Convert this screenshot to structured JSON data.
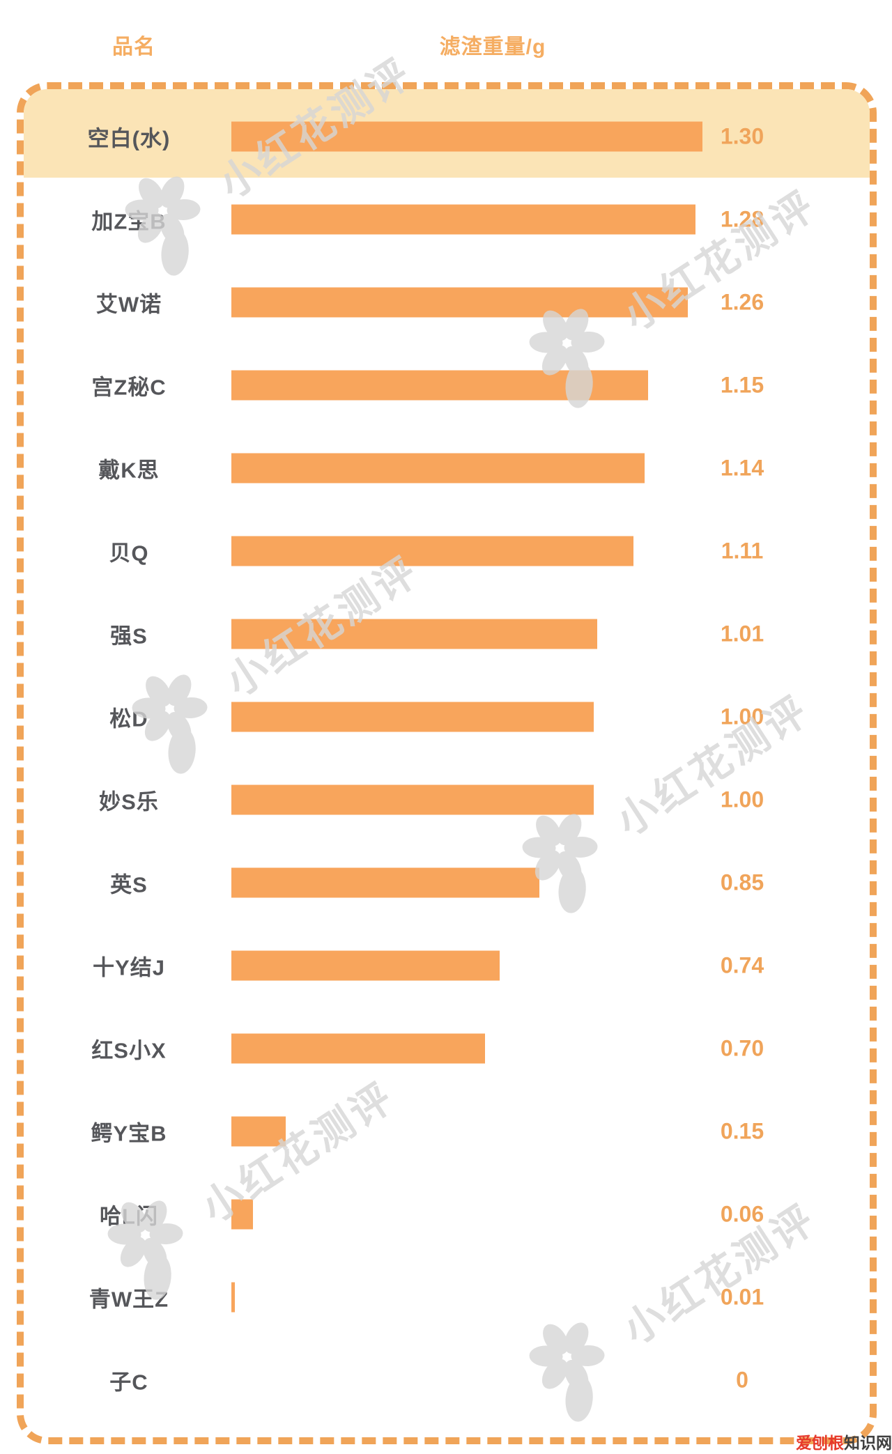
{
  "header": {
    "col_product": "品名",
    "col_weight": "滤渣重量/g"
  },
  "chart_data": {
    "type": "bar",
    "orientation": "horizontal",
    "title": "",
    "xlabel": "滤渣重量/g",
    "ylabel": "品名",
    "unit": "g",
    "xlim": [
      0,
      1.3
    ],
    "max_value": 1.3,
    "grid": false,
    "legend_position": "none",
    "highlighted_category": "空白(水)",
    "categories": [
      "空白(水)",
      "加Z宝B",
      "艾W诺",
      "宫Z秘C",
      "戴K思",
      "贝Q",
      "强S",
      "松D",
      "妙S乐",
      "英S",
      "十Y结J",
      "红S小X",
      "鳄Y宝B",
      "哈L闪",
      "青W王Z",
      "子C"
    ],
    "values": [
      1.3,
      1.28,
      1.26,
      1.15,
      1.14,
      1.11,
      1.01,
      1.0,
      1.0,
      0.85,
      0.74,
      0.7,
      0.15,
      0.06,
      0.01,
      0
    ],
    "value_labels": [
      "1.30",
      "1.28",
      "1.26",
      "1.15",
      "1.14",
      "1.11",
      "1.01",
      "1.00",
      "1.00",
      "0.85",
      "0.74",
      "0.70",
      "0.15",
      "0.06",
      "0.01",
      "0"
    ],
    "bar_color": "#F8A55C",
    "highlight_band_color": "#FBE4B6",
    "value_text_color": "#F0A45A",
    "label_text_color": "#55565A",
    "border_color": "#F0A458",
    "header_text_color": "#F5AD62"
  },
  "watermark": {
    "text": "小红花测评"
  },
  "footer_watermark": {
    "prefix": "爱刨根",
    "suffix": "知识网"
  }
}
